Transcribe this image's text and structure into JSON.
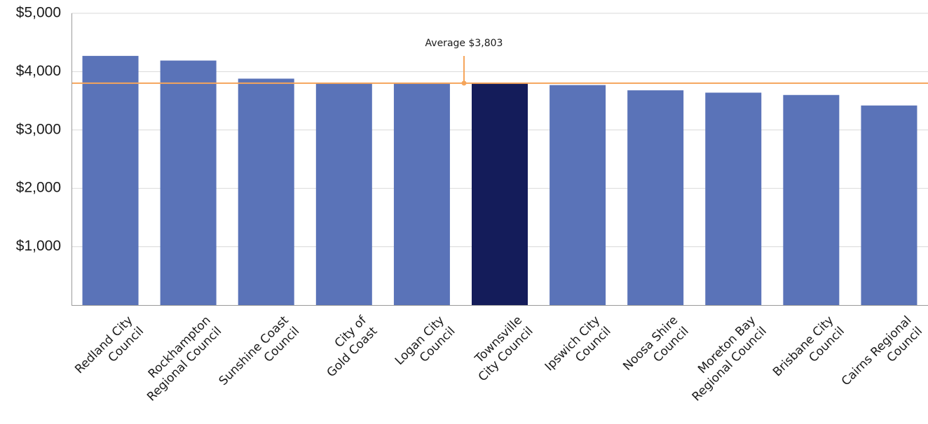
{
  "chart_data": {
    "type": "bar",
    "title": "",
    "xlabel": "",
    "ylabel": "",
    "categories": [
      [
        "Redland City",
        "Council"
      ],
      [
        "Rockhampton",
        "Regional Council"
      ],
      [
        "Sunshine Coast",
        "Council"
      ],
      [
        "City of",
        "Gold Coast"
      ],
      [
        "Logan City",
        "Council"
      ],
      [
        "Townsville",
        "City Council"
      ],
      [
        "Ipswich City",
        "Council"
      ],
      [
        "Noosa Shire",
        "Council"
      ],
      [
        "Moreton Bay",
        "Regional Council"
      ],
      [
        "Brisbane City",
        "Council"
      ],
      [
        "Cairns Regional",
        "Council"
      ]
    ],
    "values": [
      4270,
      4190,
      3880,
      3810,
      3810,
      3803,
      3770,
      3680,
      3640,
      3600,
      3420
    ],
    "highlight_index": 5,
    "ylim": [
      0,
      5000
    ],
    "yticks": [
      {
        "value": 1000,
        "label": "$1,000"
      },
      {
        "value": 2000,
        "label": "$2,000"
      },
      {
        "value": 3000,
        "label": "$3,000"
      },
      {
        "value": 4000,
        "label": "$4,000"
      },
      {
        "value": 5000,
        "label": "$5,000"
      }
    ],
    "grid": true,
    "reference_line": {
      "value": 3803,
      "label": "Average $3,803"
    },
    "colors": {
      "bar": "#5a73b8",
      "highlight": "#141c5a",
      "average": "#f5a55b",
      "grid": "#d9d9d9",
      "axis": "#9a9a9a"
    }
  }
}
